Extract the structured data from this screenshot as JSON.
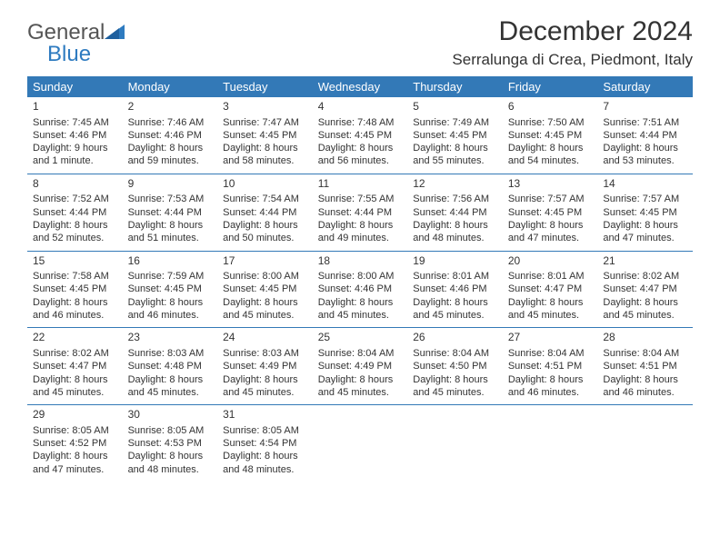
{
  "logo": {
    "word1": "General",
    "word2": "Blue"
  },
  "title": "December 2024",
  "location": "Serralunga di Crea, Piedmont, Italy",
  "header_bg": "#3379b7",
  "days_of_week": [
    "Sunday",
    "Monday",
    "Tuesday",
    "Wednesday",
    "Thursday",
    "Friday",
    "Saturday"
  ],
  "weeks": [
    [
      {
        "n": "1",
        "sr": "Sunrise: 7:45 AM",
        "ss": "Sunset: 4:46 PM",
        "dl": "Daylight: 9 hours and 1 minute."
      },
      {
        "n": "2",
        "sr": "Sunrise: 7:46 AM",
        "ss": "Sunset: 4:46 PM",
        "dl": "Daylight: 8 hours and 59 minutes."
      },
      {
        "n": "3",
        "sr": "Sunrise: 7:47 AM",
        "ss": "Sunset: 4:45 PM",
        "dl": "Daylight: 8 hours and 58 minutes."
      },
      {
        "n": "4",
        "sr": "Sunrise: 7:48 AM",
        "ss": "Sunset: 4:45 PM",
        "dl": "Daylight: 8 hours and 56 minutes."
      },
      {
        "n": "5",
        "sr": "Sunrise: 7:49 AM",
        "ss": "Sunset: 4:45 PM",
        "dl": "Daylight: 8 hours and 55 minutes."
      },
      {
        "n": "6",
        "sr": "Sunrise: 7:50 AM",
        "ss": "Sunset: 4:45 PM",
        "dl": "Daylight: 8 hours and 54 minutes."
      },
      {
        "n": "7",
        "sr": "Sunrise: 7:51 AM",
        "ss": "Sunset: 4:44 PM",
        "dl": "Daylight: 8 hours and 53 minutes."
      }
    ],
    [
      {
        "n": "8",
        "sr": "Sunrise: 7:52 AM",
        "ss": "Sunset: 4:44 PM",
        "dl": "Daylight: 8 hours and 52 minutes."
      },
      {
        "n": "9",
        "sr": "Sunrise: 7:53 AM",
        "ss": "Sunset: 4:44 PM",
        "dl": "Daylight: 8 hours and 51 minutes."
      },
      {
        "n": "10",
        "sr": "Sunrise: 7:54 AM",
        "ss": "Sunset: 4:44 PM",
        "dl": "Daylight: 8 hours and 50 minutes."
      },
      {
        "n": "11",
        "sr": "Sunrise: 7:55 AM",
        "ss": "Sunset: 4:44 PM",
        "dl": "Daylight: 8 hours and 49 minutes."
      },
      {
        "n": "12",
        "sr": "Sunrise: 7:56 AM",
        "ss": "Sunset: 4:44 PM",
        "dl": "Daylight: 8 hours and 48 minutes."
      },
      {
        "n": "13",
        "sr": "Sunrise: 7:57 AM",
        "ss": "Sunset: 4:45 PM",
        "dl": "Daylight: 8 hours and 47 minutes."
      },
      {
        "n": "14",
        "sr": "Sunrise: 7:57 AM",
        "ss": "Sunset: 4:45 PM",
        "dl": "Daylight: 8 hours and 47 minutes."
      }
    ],
    [
      {
        "n": "15",
        "sr": "Sunrise: 7:58 AM",
        "ss": "Sunset: 4:45 PM",
        "dl": "Daylight: 8 hours and 46 minutes."
      },
      {
        "n": "16",
        "sr": "Sunrise: 7:59 AM",
        "ss": "Sunset: 4:45 PM",
        "dl": "Daylight: 8 hours and 46 minutes."
      },
      {
        "n": "17",
        "sr": "Sunrise: 8:00 AM",
        "ss": "Sunset: 4:45 PM",
        "dl": "Daylight: 8 hours and 45 minutes."
      },
      {
        "n": "18",
        "sr": "Sunrise: 8:00 AM",
        "ss": "Sunset: 4:46 PM",
        "dl": "Daylight: 8 hours and 45 minutes."
      },
      {
        "n": "19",
        "sr": "Sunrise: 8:01 AM",
        "ss": "Sunset: 4:46 PM",
        "dl": "Daylight: 8 hours and 45 minutes."
      },
      {
        "n": "20",
        "sr": "Sunrise: 8:01 AM",
        "ss": "Sunset: 4:47 PM",
        "dl": "Daylight: 8 hours and 45 minutes."
      },
      {
        "n": "21",
        "sr": "Sunrise: 8:02 AM",
        "ss": "Sunset: 4:47 PM",
        "dl": "Daylight: 8 hours and 45 minutes."
      }
    ],
    [
      {
        "n": "22",
        "sr": "Sunrise: 8:02 AM",
        "ss": "Sunset: 4:47 PM",
        "dl": "Daylight: 8 hours and 45 minutes."
      },
      {
        "n": "23",
        "sr": "Sunrise: 8:03 AM",
        "ss": "Sunset: 4:48 PM",
        "dl": "Daylight: 8 hours and 45 minutes."
      },
      {
        "n": "24",
        "sr": "Sunrise: 8:03 AM",
        "ss": "Sunset: 4:49 PM",
        "dl": "Daylight: 8 hours and 45 minutes."
      },
      {
        "n": "25",
        "sr": "Sunrise: 8:04 AM",
        "ss": "Sunset: 4:49 PM",
        "dl": "Daylight: 8 hours and 45 minutes."
      },
      {
        "n": "26",
        "sr": "Sunrise: 8:04 AM",
        "ss": "Sunset: 4:50 PM",
        "dl": "Daylight: 8 hours and 45 minutes."
      },
      {
        "n": "27",
        "sr": "Sunrise: 8:04 AM",
        "ss": "Sunset: 4:51 PM",
        "dl": "Daylight: 8 hours and 46 minutes."
      },
      {
        "n": "28",
        "sr": "Sunrise: 8:04 AM",
        "ss": "Sunset: 4:51 PM",
        "dl": "Daylight: 8 hours and 46 minutes."
      }
    ],
    [
      {
        "n": "29",
        "sr": "Sunrise: 8:05 AM",
        "ss": "Sunset: 4:52 PM",
        "dl": "Daylight: 8 hours and 47 minutes."
      },
      {
        "n": "30",
        "sr": "Sunrise: 8:05 AM",
        "ss": "Sunset: 4:53 PM",
        "dl": "Daylight: 8 hours and 48 minutes."
      },
      {
        "n": "31",
        "sr": "Sunrise: 8:05 AM",
        "ss": "Sunset: 4:54 PM",
        "dl": "Daylight: 8 hours and 48 minutes."
      },
      null,
      null,
      null,
      null
    ]
  ]
}
